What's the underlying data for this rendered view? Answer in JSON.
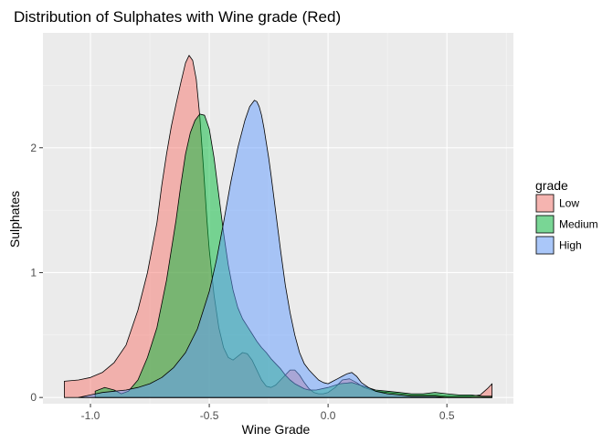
{
  "chart_data": {
    "type": "area",
    "title": "Distribution of Sulphates with Wine grade (Red)",
    "xlabel": "Wine Grade",
    "ylabel": "Sulphates",
    "xlim": [
      -1.2,
      0.78
    ],
    "ylim": [
      -0.05,
      2.92
    ],
    "x_ticks": [
      -1.0,
      -0.5,
      0.0,
      0.5
    ],
    "x_tick_labels": [
      "-1.0",
      "-0.5",
      "0.0",
      "0.5"
    ],
    "y_ticks": [
      0,
      1,
      2
    ],
    "y_tick_labels": [
      "0",
      "1",
      "2"
    ],
    "grid": true,
    "legend": {
      "title": "grade",
      "placement": "right"
    },
    "series": [
      {
        "name": "Low",
        "color": "#F8766D",
        "x": [
          -1.11,
          -1.05,
          -1.0,
          -0.95,
          -0.9,
          -0.85,
          -0.8,
          -0.76,
          -0.72,
          -0.7,
          -0.68,
          -0.66,
          -0.64,
          -0.62,
          -0.6,
          -0.585,
          -0.57,
          -0.555,
          -0.54,
          -0.525,
          -0.51,
          -0.5,
          -0.48,
          -0.46,
          -0.44,
          -0.42,
          -0.4,
          -0.38,
          -0.36,
          -0.34,
          -0.32,
          -0.3,
          -0.28,
          -0.26,
          -0.24,
          -0.22,
          -0.2,
          -0.18,
          -0.16,
          -0.14,
          -0.12,
          -0.1,
          -0.08,
          -0.06,
          -0.04,
          -0.02,
          0.0,
          0.03,
          0.06,
          0.09,
          0.12,
          0.15,
          0.2,
          0.25,
          0.3,
          0.35,
          0.4,
          0.45,
          0.5,
          0.55,
          0.6,
          0.64,
          0.67,
          0.69
        ],
        "y": [
          0.13,
          0.14,
          0.16,
          0.2,
          0.28,
          0.42,
          0.7,
          1.0,
          1.4,
          1.7,
          1.95,
          2.17,
          2.35,
          2.52,
          2.68,
          2.74,
          2.7,
          2.55,
          2.25,
          1.85,
          1.42,
          1.18,
          0.82,
          0.56,
          0.4,
          0.32,
          0.3,
          0.33,
          0.36,
          0.35,
          0.3,
          0.22,
          0.14,
          0.09,
          0.08,
          0.1,
          0.14,
          0.18,
          0.22,
          0.22,
          0.18,
          0.12,
          0.07,
          0.04,
          0.03,
          0.03,
          0.04,
          0.08,
          0.14,
          0.15,
          0.12,
          0.08,
          0.05,
          0.04,
          0.03,
          0.02,
          0.02,
          0.02,
          0.01,
          0.01,
          0.01,
          0.02,
          0.07,
          0.11
        ]
      },
      {
        "name": "Medium",
        "color": "#00BA38",
        "x": [
          -0.98,
          -0.94,
          -0.9,
          -0.87,
          -0.84,
          -0.8,
          -0.76,
          -0.72,
          -0.68,
          -0.64,
          -0.62,
          -0.6,
          -0.58,
          -0.56,
          -0.54,
          -0.52,
          -0.5,
          -0.48,
          -0.46,
          -0.44,
          -0.42,
          -0.4,
          -0.38,
          -0.36,
          -0.34,
          -0.32,
          -0.3,
          -0.28,
          -0.26,
          -0.24,
          -0.22,
          -0.2,
          -0.18,
          -0.16,
          -0.14,
          -0.12,
          -0.1,
          -0.08,
          -0.05,
          0.0,
          0.05,
          0.1,
          0.15,
          0.2,
          0.25,
          0.3,
          0.35,
          0.4,
          0.45,
          0.5,
          0.55,
          0.6,
          0.65,
          0.69
        ],
        "y": [
          0.05,
          0.08,
          0.06,
          0.03,
          0.05,
          0.14,
          0.32,
          0.56,
          0.94,
          1.42,
          1.7,
          1.95,
          2.12,
          2.22,
          2.27,
          2.26,
          2.15,
          1.92,
          1.62,
          1.32,
          1.06,
          0.86,
          0.72,
          0.63,
          0.57,
          0.51,
          0.45,
          0.4,
          0.36,
          0.31,
          0.27,
          0.23,
          0.18,
          0.14,
          0.11,
          0.09,
          0.07,
          0.06,
          0.06,
          0.08,
          0.11,
          0.12,
          0.09,
          0.06,
          0.05,
          0.04,
          0.03,
          0.03,
          0.04,
          0.03,
          0.02,
          0.02,
          0.01,
          0.01
        ]
      },
      {
        "name": "High",
        "color": "#619CFF",
        "x": [
          -1.05,
          -1.0,
          -0.95,
          -0.9,
          -0.85,
          -0.8,
          -0.75,
          -0.7,
          -0.65,
          -0.6,
          -0.55,
          -0.5,
          -0.47,
          -0.44,
          -0.41,
          -0.38,
          -0.35,
          -0.33,
          -0.31,
          -0.3,
          -0.29,
          -0.28,
          -0.27,
          -0.26,
          -0.25,
          -0.24,
          -0.22,
          -0.2,
          -0.18,
          -0.16,
          -0.14,
          -0.12,
          -0.1,
          -0.08,
          -0.06,
          -0.04,
          -0.02,
          0.0,
          0.02,
          0.04,
          0.06,
          0.08,
          0.1,
          0.12,
          0.14,
          0.17,
          0.2,
          0.25,
          0.3,
          0.35,
          0.4,
          0.45,
          0.5,
          0.55,
          0.6,
          0.65,
          0.69
        ],
        "y": [
          0.0,
          0.02,
          0.04,
          0.05,
          0.06,
          0.08,
          0.11,
          0.16,
          0.24,
          0.36,
          0.55,
          0.85,
          1.1,
          1.4,
          1.72,
          2.0,
          2.22,
          2.33,
          2.38,
          2.37,
          2.33,
          2.26,
          2.16,
          2.04,
          1.92,
          1.78,
          1.48,
          1.18,
          0.9,
          0.68,
          0.5,
          0.36,
          0.27,
          0.22,
          0.18,
          0.14,
          0.12,
          0.11,
          0.13,
          0.15,
          0.17,
          0.19,
          0.2,
          0.17,
          0.12,
          0.08,
          0.05,
          0.03,
          0.02,
          0.01,
          0.01,
          0.01,
          0.0,
          0.0,
          0.0,
          0.0,
          0.0
        ]
      }
    ]
  }
}
